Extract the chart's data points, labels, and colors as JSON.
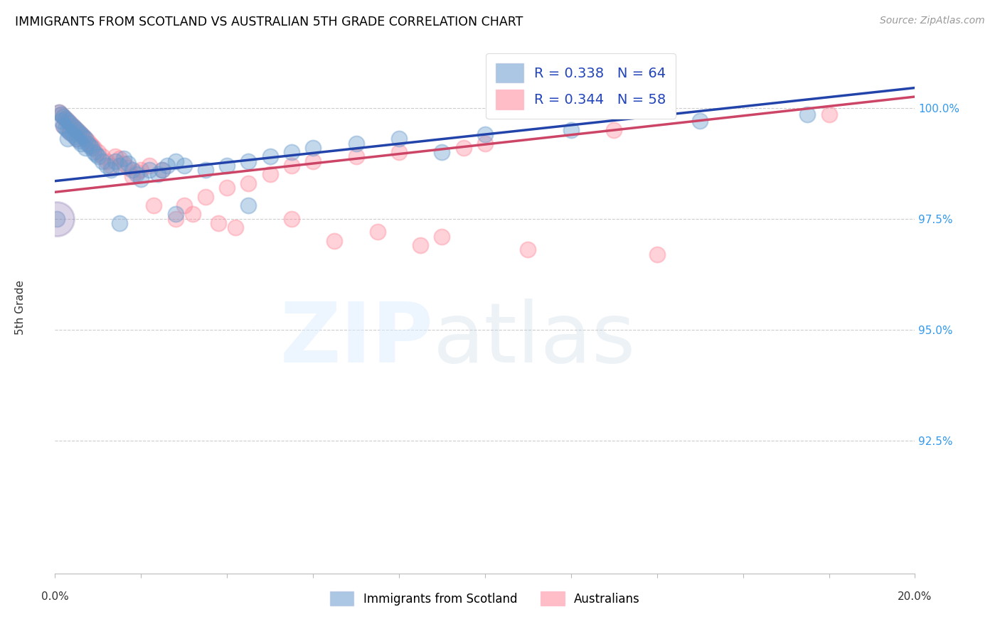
{
  "title": "IMMIGRANTS FROM SCOTLAND VS AUSTRALIAN 5TH GRADE CORRELATION CHART",
  "source": "Source: ZipAtlas.com",
  "ylabel": "5th Grade",
  "yticks": [
    90.0,
    92.5,
    95.0,
    97.5,
    100.0
  ],
  "ytick_labels": [
    "",
    "92.5%",
    "95.0%",
    "97.5%",
    "100.0%"
  ],
  "xlim": [
    0.0,
    20.0
  ],
  "ylim": [
    89.5,
    101.5
  ],
  "legend_blue_label": "R = 0.338   N = 64",
  "legend_pink_label": "R = 0.344   N = 58",
  "legend1_label": "Immigrants from Scotland",
  "legend2_label": "Australians",
  "blue_color": "#6699CC",
  "pink_color": "#FF8899",
  "blue_line_color": "#2244AA",
  "pink_line_color": "#CC4466",
  "scotland_x": [
    0.1,
    0.15,
    0.15,
    0.2,
    0.2,
    0.25,
    0.25,
    0.3,
    0.3,
    0.3,
    0.35,
    0.35,
    0.4,
    0.4,
    0.45,
    0.45,
    0.5,
    0.5,
    0.55,
    0.55,
    0.6,
    0.6,
    0.65,
    0.7,
    0.7,
    0.75,
    0.8,
    0.85,
    0.9,
    0.95,
    1.0,
    1.1,
    1.2,
    1.3,
    1.4,
    1.5,
    1.6,
    1.7,
    1.8,
    1.9,
    2.0,
    2.2,
    2.4,
    2.5,
    2.6,
    2.8,
    3.0,
    3.5,
    4.0,
    4.5,
    5.0,
    5.5,
    6.0,
    7.0,
    8.0,
    9.0,
    10.0,
    12.0,
    15.0,
    17.5,
    0.05,
    1.5,
    2.8,
    4.5
  ],
  "scotland_y": [
    99.9,
    99.85,
    99.7,
    99.8,
    99.6,
    99.75,
    99.55,
    99.7,
    99.5,
    99.3,
    99.65,
    99.45,
    99.6,
    99.4,
    99.55,
    99.35,
    99.5,
    99.3,
    99.45,
    99.25,
    99.4,
    99.2,
    99.35,
    99.3,
    99.1,
    99.2,
    99.15,
    99.1,
    99.0,
    98.95,
    98.9,
    98.8,
    98.7,
    98.6,
    98.8,
    98.7,
    98.85,
    98.75,
    98.6,
    98.5,
    98.4,
    98.6,
    98.5,
    98.6,
    98.7,
    98.8,
    98.7,
    98.6,
    98.7,
    98.8,
    98.9,
    99.0,
    99.1,
    99.2,
    99.3,
    99.0,
    99.4,
    99.5,
    99.7,
    99.85,
    97.5,
    97.4,
    97.6,
    97.8
  ],
  "australian_x": [
    0.1,
    0.15,
    0.2,
    0.2,
    0.25,
    0.3,
    0.35,
    0.35,
    0.4,
    0.45,
    0.5,
    0.5,
    0.55,
    0.6,
    0.65,
    0.7,
    0.75,
    0.8,
    0.85,
    0.9,
    1.0,
    1.1,
    1.2,
    1.3,
    1.4,
    1.5,
    1.6,
    1.7,
    1.9,
    2.0,
    2.2,
    2.5,
    2.8,
    3.0,
    3.5,
    4.0,
    4.5,
    5.0,
    5.5,
    6.0,
    7.0,
    8.0,
    9.5,
    10.0,
    13.0,
    18.0,
    1.8,
    2.3,
    3.2,
    3.8,
    4.2,
    5.5,
    7.5,
    9.0,
    6.5,
    8.5,
    11.0,
    14.0
  ],
  "australian_y": [
    99.9,
    99.85,
    99.8,
    99.6,
    99.75,
    99.7,
    99.65,
    99.45,
    99.6,
    99.55,
    99.5,
    99.3,
    99.45,
    99.4,
    99.35,
    99.3,
    99.25,
    99.2,
    99.15,
    99.1,
    99.0,
    98.9,
    98.8,
    98.7,
    98.9,
    98.85,
    98.75,
    98.65,
    98.55,
    98.6,
    98.7,
    98.6,
    97.5,
    97.8,
    98.0,
    98.2,
    98.3,
    98.5,
    98.7,
    98.8,
    98.9,
    99.0,
    99.1,
    99.2,
    99.5,
    99.85,
    98.45,
    97.8,
    97.6,
    97.4,
    97.3,
    97.5,
    97.2,
    97.1,
    97.0,
    96.9,
    96.8,
    96.7
  ],
  "large_blue_x": 0.04,
  "large_blue_y": 97.5,
  "blue_trend_x": [
    0.0,
    20.0
  ],
  "blue_trend_y": [
    98.35,
    100.45
  ],
  "pink_trend_x": [
    0.0,
    20.0
  ],
  "pink_trend_y": [
    98.1,
    100.25
  ]
}
